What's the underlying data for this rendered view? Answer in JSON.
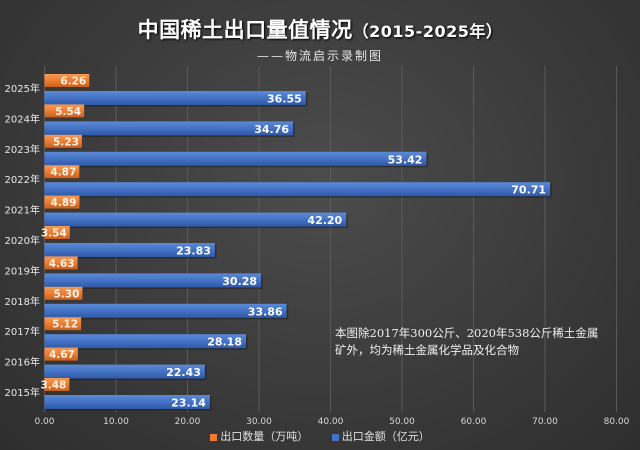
{
  "title": {
    "main": "中国稀土出口量值情况",
    "years": "（2015-2025年）"
  },
  "subtitle": "——物流启示录制图",
  "note": "本图除2017年300公斤、2020年538公斤稀土金属矿外，均为稀土金属化学品及化合物",
  "colors": {
    "quantity": "#ed7d31",
    "value": "#4472c4",
    "background": "#3e3e3e",
    "grid": "#5a5a5a"
  },
  "chart_data": {
    "type": "bar",
    "orientation": "horizontal",
    "title": "中国稀土出口量值情况（2015-2025年）",
    "categories": [
      "2025年",
      "2024年",
      "2023年",
      "2022年",
      "2021年",
      "2020年",
      "2019年",
      "2018年",
      "2017年",
      "2016年",
      "2015年"
    ],
    "series": [
      {
        "name": "出口数量（万吨）",
        "color": "#ed7d31",
        "values": [
          6.26,
          5.54,
          5.23,
          4.87,
          4.89,
          3.54,
          4.63,
          5.3,
          5.12,
          4.67,
          3.48
        ]
      },
      {
        "name": "出口金额（亿元）",
        "color": "#4472c4",
        "values": [
          36.55,
          34.76,
          53.42,
          70.71,
          42.2,
          23.83,
          30.28,
          33.86,
          28.18,
          22.43,
          23.14
        ]
      }
    ],
    "labels": {
      "quantity": [
        "6.26",
        "5.54",
        "5.23",
        "4.87",
        "4.89",
        "3.54",
        "4.63",
        "5.30",
        "5.12",
        "4.67",
        "3.48"
      ],
      "value": [
        "36.55",
        "34.76",
        "53.42",
        "70.71",
        "42.20",
        "23.83",
        "30.28",
        "33.86",
        "28.18",
        "22.43",
        "23.14"
      ]
    },
    "xticks": [
      "0.00",
      "10.00",
      "20.00",
      "30.00",
      "40.00",
      "50.00",
      "60.00",
      "70.00",
      "80.00"
    ],
    "xlim": [
      0,
      80
    ],
    "grid": true,
    "legend": "bottom"
  }
}
